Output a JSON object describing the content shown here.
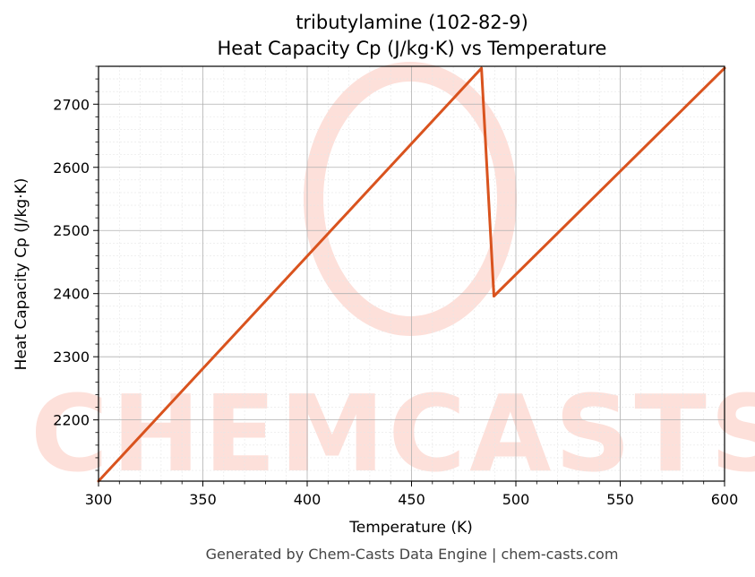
{
  "chart_data": {
    "type": "line",
    "title_line1": "tributylamine (102-82-9)",
    "title_line2": "Heat Capacity Cp (J/kg·K) vs Temperature",
    "xlabel": "Temperature (K)",
    "ylabel": "Heat Capacity Cp (J/kg·K)",
    "xlim": [
      300,
      600
    ],
    "ylim": [
      2103,
      2760
    ],
    "xticks": [
      300,
      350,
      400,
      450,
      500,
      550,
      600
    ],
    "yticks": [
      2200,
      2300,
      2400,
      2500,
      2600,
      2700
    ],
    "grid": true,
    "series": [
      {
        "color": "#d9531e",
        "x": [
          300,
          483.5,
          489.5,
          600
        ],
        "y": [
          2103,
          2757,
          2396,
          2757
        ]
      }
    ]
  },
  "watermark": {
    "text": "CHEMCASTS",
    "color": "#fde0da"
  },
  "footer": "Generated by Chem-Casts Data Engine | chem-casts.com"
}
